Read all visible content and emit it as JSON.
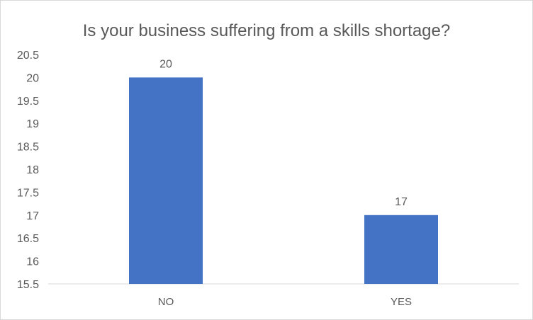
{
  "chart_data": {
    "type": "bar",
    "title": "Is your business suffering from a skills shortage?",
    "categories": [
      "NO",
      "YES"
    ],
    "values": [
      20,
      17
    ],
    "data_labels": [
      "20",
      "17"
    ],
    "ylim": [
      15.5,
      20.5
    ],
    "yticks": [
      "15.5",
      "16",
      "16.5",
      "17",
      "17.5",
      "18",
      "18.5",
      "19",
      "19.5",
      "20",
      "20.5"
    ],
    "grid": false,
    "bar_color": "#4472C4"
  }
}
